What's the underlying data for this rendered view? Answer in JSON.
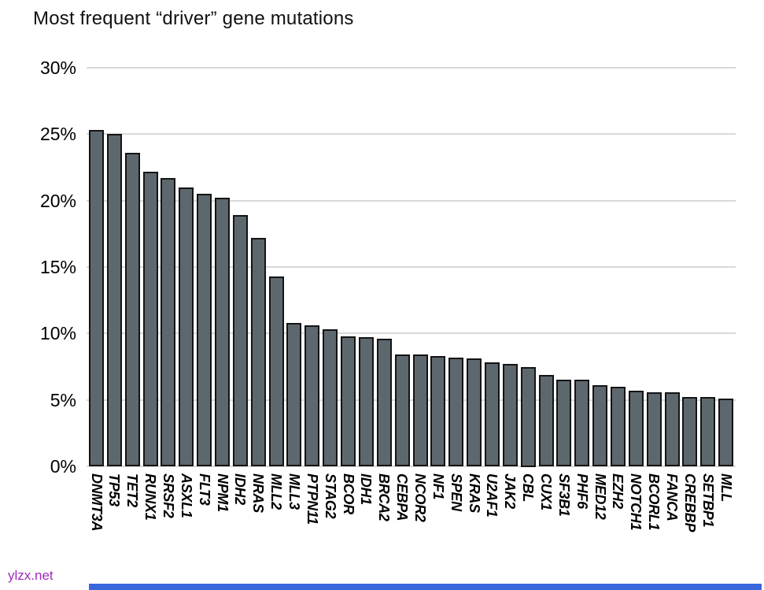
{
  "title": "Most frequent “driver” gene mutations",
  "watermark": "ylzx.net",
  "colors": {
    "background": "#ffffff",
    "bar_fill": "#5d686e",
    "bar_border": "#141414",
    "gridline": "#d9d9d9",
    "text": "#000000",
    "watermark": "#9d2bbf",
    "bottom_bar": "#3b67dd"
  },
  "chart_data": {
    "type": "bar",
    "title": "Most frequent “driver” gene mutations",
    "xlabel": "",
    "ylabel": "",
    "ylim": [
      0,
      30
    ],
    "y_tick_labels": [
      "0%",
      "5%",
      "10%",
      "15%",
      "20%",
      "25%",
      "30%"
    ],
    "grid": "horizontal-only",
    "legend": "none",
    "x_tick_style": "rotated-90-bold-italic",
    "categories": [
      "DNMT3A",
      "TP53",
      "TET2",
      "RUNX1",
      "SRSF2",
      "ASXL1",
      "FLT3",
      "NPM1",
      "IDH2",
      "NRAS",
      "MLL2",
      "MLL3",
      "PTPN11",
      "STAG2",
      "BCOR",
      "IDH1",
      "BRCA2",
      "CEBPA",
      "NCOR2",
      "NF1",
      "SPEN",
      "KRAS",
      "U2AF1",
      "JAK2",
      "CBL",
      "CUX1",
      "SF3B1",
      "PHF6",
      "MED12",
      "EZH2",
      "NOTCH1",
      "BCORL1",
      "FANCA",
      "CREBBP",
      "SETBP1",
      "MLL"
    ],
    "values": [
      25.3,
      25.0,
      23.6,
      22.2,
      21.7,
      21.0,
      20.5,
      20.2,
      18.9,
      17.2,
      14.3,
      10.8,
      10.6,
      10.3,
      9.8,
      9.7,
      9.6,
      8.4,
      8.4,
      8.3,
      8.2,
      8.1,
      7.8,
      7.7,
      7.5,
      6.9,
      6.5,
      6.5,
      6.1,
      6.0,
      5.7,
      5.6,
      5.6,
      5.2,
      5.2,
      5.1
    ]
  }
}
